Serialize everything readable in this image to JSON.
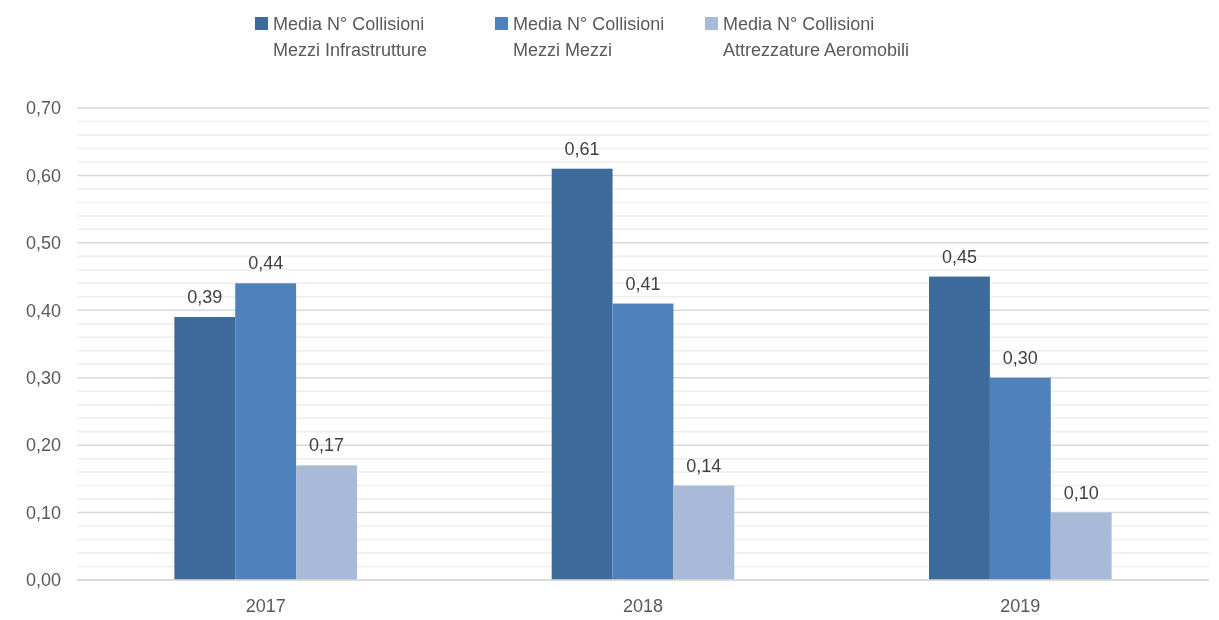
{
  "chart_data": {
    "type": "bar",
    "categories": [
      "2017",
      "2018",
      "2019"
    ],
    "series": [
      {
        "name": "Media N° Collisioni Mezzi Infrastrutture",
        "color": "#3e6a9c",
        "values": [
          0.39,
          0.61,
          0.45
        ],
        "value_labels": [
          "0,39",
          "0,61",
          "0,45"
        ]
      },
      {
        "name": "Media N° Collisioni Mezzi Mezzi",
        "color": "#4f81bd",
        "values": [
          0.44,
          0.41,
          0.3
        ],
        "value_labels": [
          "0,44",
          "0,41",
          "0,30"
        ]
      },
      {
        "name": "Media N° Collisioni Attrezzature Aeromobili",
        "color": "#a9bad8",
        "values": [
          0.17,
          0.14,
          0.1
        ],
        "value_labels": [
          "0,17",
          "0,14",
          "0,10"
        ]
      }
    ],
    "ylim": [
      0,
      0.7
    ],
    "yticks": [
      {
        "value": 0,
        "label": "0,00"
      },
      {
        "value": 0.02,
        "label": null
      },
      {
        "value": 0.04,
        "label": null
      },
      {
        "value": 0.06,
        "label": null
      },
      {
        "value": 0.08,
        "label": null
      },
      {
        "value": 0.1,
        "label": "0,10"
      },
      {
        "value": 0.12,
        "label": null
      },
      {
        "value": 0.14,
        "label": null
      },
      {
        "value": 0.16,
        "label": null
      },
      {
        "value": 0.18,
        "label": null
      },
      {
        "value": 0.2,
        "label": "0,20"
      },
      {
        "value": 0.22,
        "label": null
      },
      {
        "value": 0.24,
        "label": null
      },
      {
        "value": 0.26,
        "label": null
      },
      {
        "value": 0.28,
        "label": null
      },
      {
        "value": 0.3,
        "label": "0,30"
      },
      {
        "value": 0.32,
        "label": null
      },
      {
        "value": 0.34,
        "label": null
      },
      {
        "value": 0.36,
        "label": null
      },
      {
        "value": 0.38,
        "label": null
      },
      {
        "value": 0.4,
        "label": "0,40"
      },
      {
        "value": 0.42,
        "label": null
      },
      {
        "value": 0.44,
        "label": null
      },
      {
        "value": 0.46,
        "label": null
      },
      {
        "value": 0.48,
        "label": null
      },
      {
        "value": 0.5,
        "label": "0,50"
      },
      {
        "value": 0.52,
        "label": null
      },
      {
        "value": 0.54,
        "label": null
      },
      {
        "value": 0.56,
        "label": null
      },
      {
        "value": 0.58,
        "label": null
      },
      {
        "value": 0.6,
        "label": "0,60"
      },
      {
        "value": 0.62,
        "label": null
      },
      {
        "value": 0.64,
        "label": null
      },
      {
        "value": 0.66,
        "label": null
      },
      {
        "value": 0.68,
        "label": null
      },
      {
        "value": 0.7,
        "label": "0,70"
      }
    ],
    "grid": true,
    "legend": "top"
  }
}
